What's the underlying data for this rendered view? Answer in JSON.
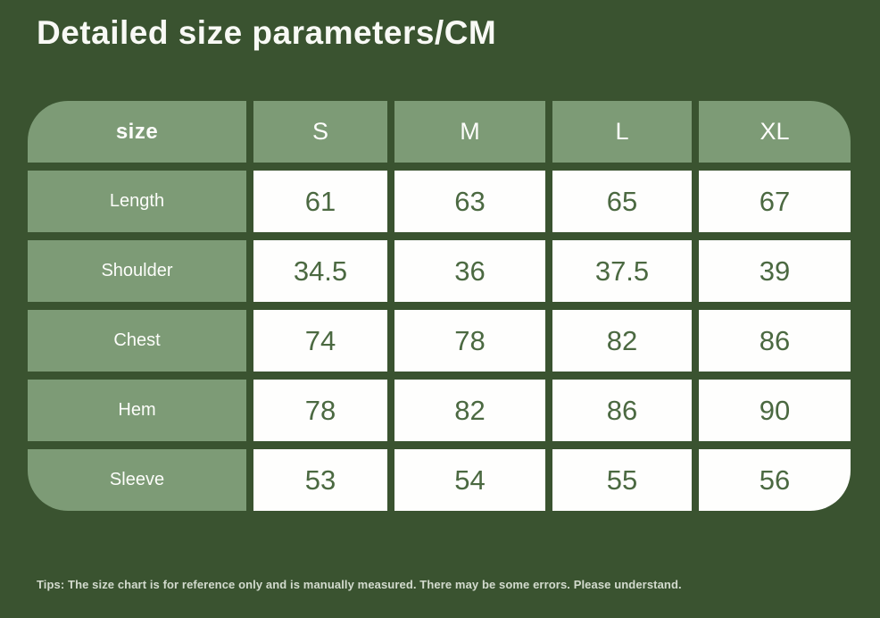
{
  "title": "Detailed size parameters/CM",
  "tips": "Tips: The size chart is for reference only and is manually measured. There may be some errors. Please understand.",
  "colors": {
    "background": "#3A5330",
    "cell_green": "#7D9B76",
    "cell_white": "#FEFEFD",
    "value_text": "#4B6941",
    "title_text": "#F8F9F5"
  },
  "chart_data": {
    "type": "table",
    "title": "Detailed size parameters/CM",
    "unit": "CM",
    "columns": [
      "size",
      "S",
      "M",
      "L",
      "XL"
    ],
    "rows": [
      {
        "label": "Length",
        "values": [
          "61",
          "63",
          "65",
          "67"
        ]
      },
      {
        "label": "Shoulder",
        "values": [
          "34.5",
          "36",
          "37.5",
          "39"
        ]
      },
      {
        "label": "Chest",
        "values": [
          "74",
          "78",
          "82",
          "86"
        ]
      },
      {
        "label": "Hem",
        "values": [
          "78",
          "82",
          "86",
          "90"
        ]
      },
      {
        "label": "Sleeve",
        "values": [
          "53",
          "54",
          "55",
          "56"
        ]
      }
    ]
  }
}
